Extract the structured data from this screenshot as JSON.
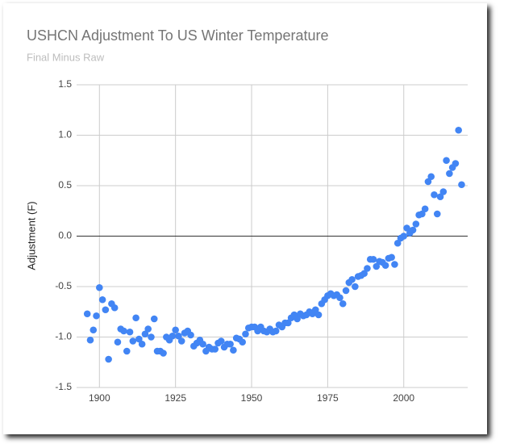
{
  "chart_data": {
    "type": "scatter",
    "title": "USHCN Adjustment To US Winter Temperature",
    "subtitle": "Final Minus Raw",
    "y_label": "Adjustment (F)",
    "color": "#4285f4",
    "grid": true,
    "xlim": [
      1892.5,
      2021
    ],
    "xticks": [
      1900,
      1925,
      1950,
      1975,
      2000
    ],
    "ylim": [
      -1.5,
      1.5
    ],
    "yticks": [
      -1.5,
      {
        "value": -1,
        "label": "-1.0"
      },
      -0.5,
      {
        "value": 0,
        "label": "0.0"
      },
      0.5,
      {
        "value": 1,
        "label": "1.0"
      },
      1.5
    ],
    "x": [
      1896,
      1897,
      1898,
      1899,
      1900,
      1901,
      1902,
      1903,
      1904,
      1905,
      1906,
      1907,
      1908,
      1909,
      1910,
      1911,
      1912,
      1913,
      1914,
      1915,
      1916,
      1917,
      1918,
      1919,
      1920,
      1921,
      1922,
      1923,
      1924,
      1925,
      1926,
      1927,
      1928,
      1929,
      1930,
      1931,
      1932,
      1933,
      1934,
      1935,
      1936,
      1937,
      1938,
      1939,
      1940,
      1941,
      1942,
      1943,
      1944,
      1945,
      1946,
      1947,
      1948,
      1949,
      1950,
      1951,
      1952,
      1953,
      1954,
      1955,
      1956,
      1957,
      1958,
      1959,
      1960,
      1961,
      1962,
      1963,
      1964,
      1965,
      1966,
      1967,
      1968,
      1969,
      1970,
      1971,
      1972,
      1973,
      1974,
      1975,
      1976,
      1977,
      1978,
      1979,
      1980,
      1981,
      1982,
      1983,
      1984,
      1985,
      1986,
      1987,
      1988,
      1989,
      1990,
      1991,
      1992,
      1993,
      1994,
      1995,
      1996,
      1997,
      1998,
      1999,
      2000,
      2001,
      2002,
      2003,
      2004,
      2005,
      2006,
      2007,
      2008,
      2009,
      2010,
      2011,
      2012,
      2013,
      2014,
      2015,
      2016,
      2017,
      2018,
      2019
    ],
    "values": [
      -0.77,
      -1.03,
      -0.93,
      -0.79,
      -0.51,
      -0.63,
      -0.73,
      -1.22,
      -0.67,
      -0.71,
      -1.05,
      -0.92,
      -0.94,
      -1.14,
      -0.95,
      -1.04,
      -0.81,
      -1.02,
      -1.07,
      -0.97,
      -0.92,
      -1.0,
      -0.82,
      -1.14,
      -1.14,
      -1.16,
      -1.0,
      -1.03,
      -0.99,
      -0.93,
      -0.99,
      -1.04,
      -0.96,
      -0.94,
      -0.98,
      -1.09,
      -1.06,
      -1.03,
      -1.07,
      -1.14,
      -1.1,
      -1.12,
      -1.12,
      -1.06,
      -1.04,
      -1.1,
      -1.07,
      -1.07,
      -1.13,
      -1.01,
      -1.02,
      -1.05,
      -0.97,
      -0.91,
      -0.9,
      -0.9,
      -0.94,
      -0.9,
      -0.94,
      -0.95,
      -0.92,
      -0.95,
      -0.94,
      -0.88,
      -0.9,
      -0.86,
      -0.86,
      -0.81,
      -0.78,
      -0.82,
      -0.77,
      -0.79,
      -0.78,
      -0.75,
      -0.77,
      -0.73,
      -0.78,
      -0.67,
      -0.63,
      -0.59,
      -0.57,
      -0.59,
      -0.58,
      -0.61,
      -0.67,
      -0.54,
      -0.46,
      -0.43,
      -0.5,
      -0.4,
      -0.39,
      -0.37,
      -0.32,
      -0.23,
      -0.23,
      -0.3,
      -0.25,
      -0.26,
      -0.29,
      -0.22,
      -0.21,
      -0.28,
      -0.07,
      -0.02,
      0.0,
      0.08,
      0.03,
      0.06,
      0.12,
      0.21,
      0.22,
      0.27,
      0.54,
      0.59,
      0.41,
      0.22,
      0.39,
      0.44,
      0.75,
      0.62,
      0.68,
      0.72,
      1.05,
      0.51
    ]
  }
}
